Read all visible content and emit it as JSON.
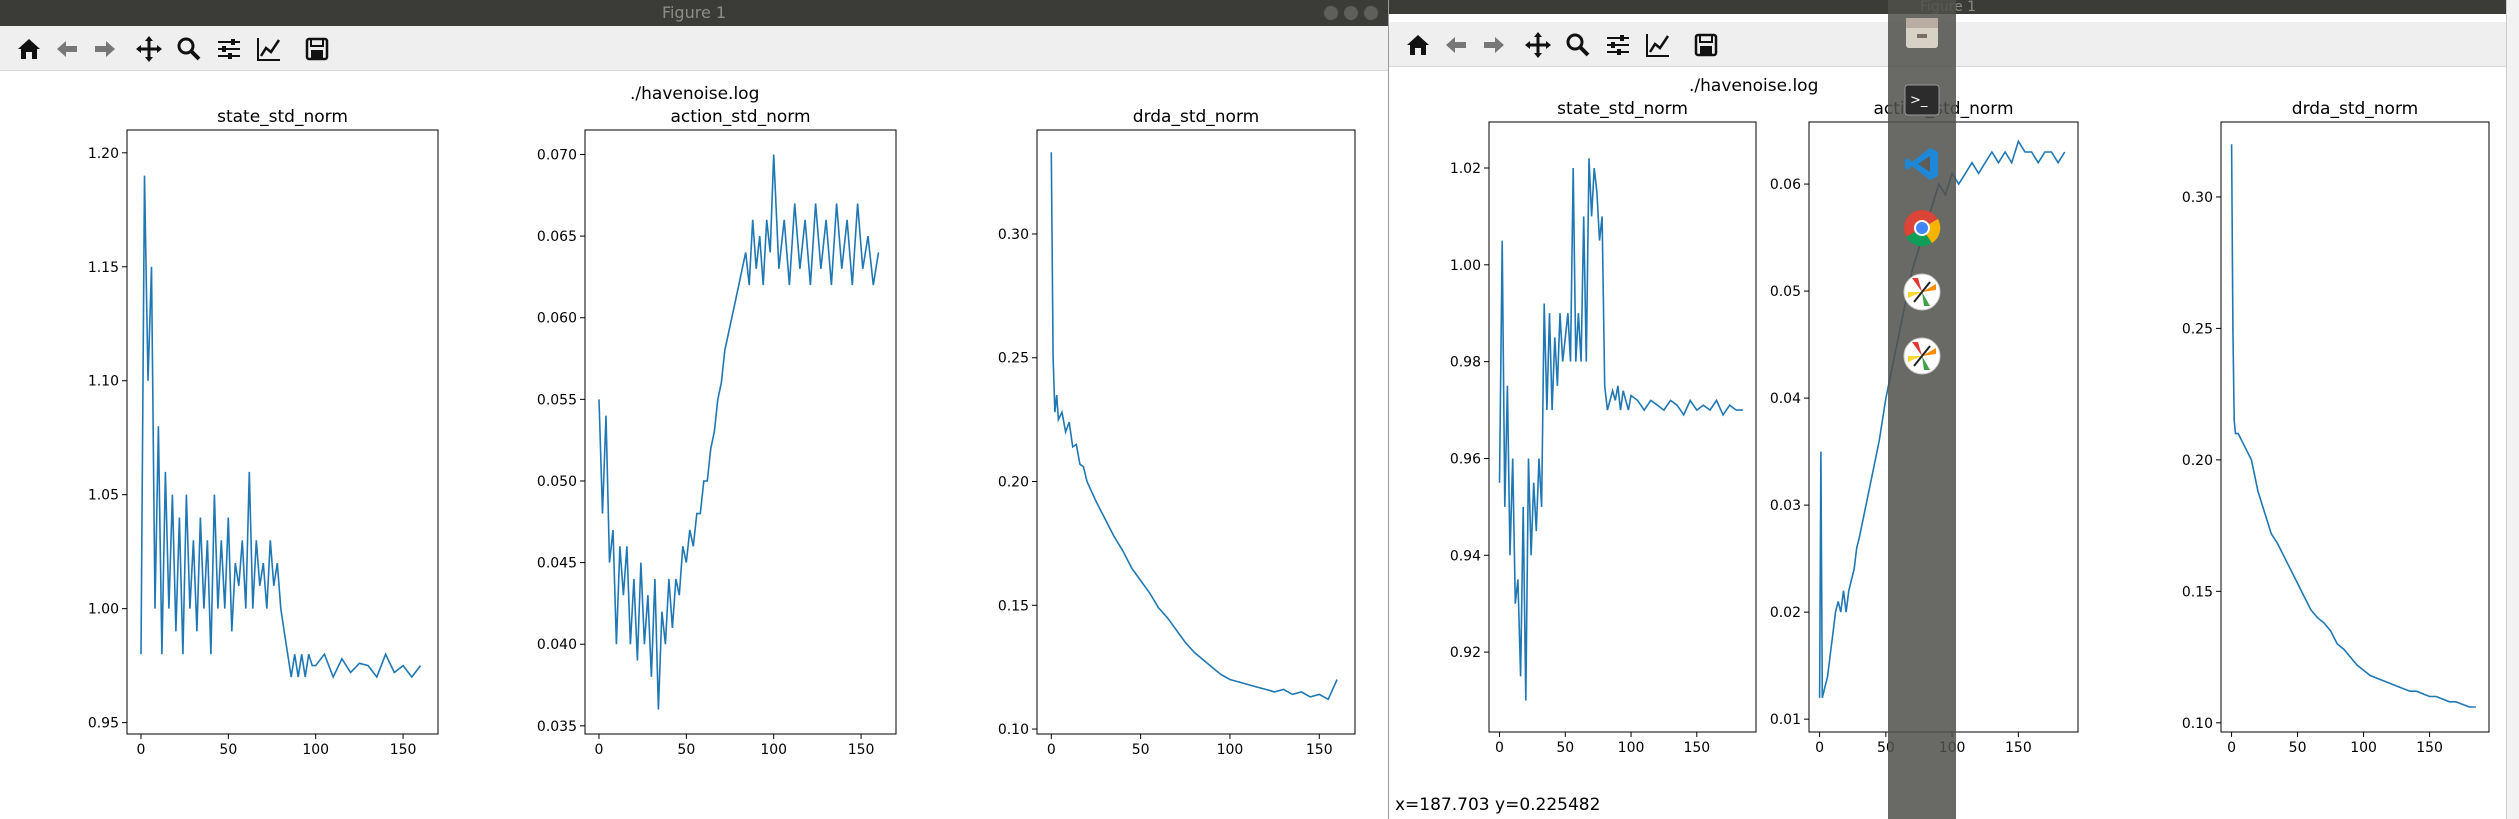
{
  "windows": {
    "left": {
      "title": "Figure 1",
      "suptitle": "./havenoise.log",
      "status": ""
    },
    "right": {
      "title": "Figure 1",
      "suptitle": "./havenoise.log",
      "status": "x=187.703     y=0.225482"
    }
  },
  "toolbar_icons": [
    "home-icon",
    "back-icon",
    "forward-icon",
    "pan-icon",
    "zoom-icon",
    "configure-subplots-icon",
    "edit-axis-icon",
    "save-icon"
  ],
  "dock_icons": [
    "files-icon",
    "terminal-icon",
    "vscode-icon",
    "chrome-icon",
    "pinwheel-app-icon",
    "pinwheel-app-icon-2"
  ],
  "colors": {
    "line": "#1f77b4",
    "titlebar": "#3b3b37",
    "toolbar": "#efefef",
    "dock": "#50504c"
  },
  "chart_data": [
    {
      "type": "line",
      "window": "left",
      "title": "state_std_norm",
      "xlabel": "",
      "ylabel": "",
      "xlim": [
        -8,
        170
      ],
      "ylim": [
        0.945,
        1.21
      ],
      "xticks": [
        0,
        50,
        100,
        150
      ],
      "yticks": [
        0.95,
        1.0,
        1.05,
        1.1,
        1.15,
        1.2
      ],
      "ytick_labels": [
        "0.95",
        "1.00",
        "1.05",
        "1.10",
        "1.15",
        "1.20"
      ],
      "x": [
        0,
        2,
        4,
        6,
        8,
        10,
        12,
        14,
        16,
        18,
        20,
        22,
        24,
        26,
        28,
        30,
        32,
        34,
        36,
        38,
        40,
        42,
        44,
        46,
        48,
        50,
        52,
        54,
        56,
        58,
        60,
        62,
        64,
        66,
        68,
        70,
        72,
        74,
        76,
        78,
        80,
        82,
        84,
        86,
        88,
        90,
        92,
        94,
        96,
        98,
        100,
        105,
        110,
        115,
        120,
        125,
        130,
        135,
        140,
        145,
        150,
        155,
        160
      ],
      "values": [
        0.98,
        1.19,
        1.1,
        1.15,
        1.0,
        1.08,
        0.98,
        1.06,
        1.0,
        1.05,
        0.99,
        1.04,
        0.98,
        1.05,
        1.0,
        1.03,
        0.99,
        1.04,
        1.0,
        1.03,
        0.98,
        1.05,
        1.0,
        1.03,
        1.0,
        1.04,
        0.99,
        1.02,
        1.01,
        1.03,
        1.0,
        1.06,
        1.0,
        1.03,
        1.01,
        1.02,
        1.0,
        1.03,
        1.01,
        1.02,
        1.0,
        0.99,
        0.98,
        0.97,
        0.98,
        0.97,
        0.98,
        0.97,
        0.98,
        0.975,
        0.975,
        0.98,
        0.97,
        0.978,
        0.972,
        0.976,
        0.975,
        0.97,
        0.98,
        0.972,
        0.975,
        0.97,
        0.975
      ]
    },
    {
      "type": "line",
      "window": "left",
      "title": "action_std_norm",
      "xlabel": "",
      "ylabel": "",
      "xlim": [
        -8,
        170
      ],
      "ylim": [
        0.0345,
        0.0715
      ],
      "xticks": [
        0,
        50,
        100,
        150
      ],
      "yticks": [
        0.035,
        0.04,
        0.045,
        0.05,
        0.055,
        0.06,
        0.065,
        0.07
      ],
      "ytick_labels": [
        "0.035",
        "0.040",
        "0.045",
        "0.050",
        "0.055",
        "0.060",
        "0.065",
        "0.070"
      ],
      "x": [
        0,
        2,
        4,
        6,
        8,
        10,
        12,
        14,
        16,
        18,
        20,
        22,
        24,
        26,
        28,
        30,
        32,
        34,
        36,
        38,
        40,
        42,
        44,
        46,
        48,
        50,
        52,
        54,
        56,
        58,
        60,
        62,
        64,
        66,
        68,
        70,
        72,
        74,
        76,
        78,
        80,
        82,
        84,
        86,
        88,
        90,
        92,
        94,
        96,
        98,
        100,
        103,
        106,
        109,
        112,
        115,
        118,
        121,
        124,
        127,
        130,
        133,
        136,
        139,
        142,
        145,
        148,
        151,
        154,
        157,
        160
      ],
      "values": [
        0.055,
        0.048,
        0.054,
        0.045,
        0.047,
        0.04,
        0.046,
        0.043,
        0.046,
        0.04,
        0.044,
        0.039,
        0.045,
        0.04,
        0.043,
        0.038,
        0.044,
        0.036,
        0.042,
        0.04,
        0.044,
        0.041,
        0.044,
        0.043,
        0.046,
        0.045,
        0.047,
        0.046,
        0.048,
        0.048,
        0.05,
        0.05,
        0.052,
        0.053,
        0.055,
        0.056,
        0.058,
        0.059,
        0.06,
        0.061,
        0.062,
        0.063,
        0.064,
        0.062,
        0.066,
        0.063,
        0.065,
        0.062,
        0.066,
        0.064,
        0.07,
        0.063,
        0.066,
        0.062,
        0.067,
        0.063,
        0.066,
        0.062,
        0.067,
        0.063,
        0.066,
        0.062,
        0.067,
        0.063,
        0.066,
        0.062,
        0.067,
        0.063,
        0.065,
        0.062,
        0.064
      ]
    },
    {
      "type": "line",
      "window": "left",
      "title": "drda_std_norm",
      "xlabel": "",
      "ylabel": "",
      "xlim": [
        -8,
        170
      ],
      "ylim": [
        0.098,
        0.342
      ],
      "xticks": [
        0,
        50,
        100,
        150
      ],
      "yticks": [
        0.1,
        0.15,
        0.2,
        0.25,
        0.3
      ],
      "ytick_labels": [
        "0.10",
        "0.15",
        "0.20",
        "0.25",
        "0.30"
      ],
      "x": [
        0,
        1,
        2,
        3,
        4,
        6,
        8,
        10,
        12,
        14,
        16,
        18,
        20,
        25,
        30,
        35,
        40,
        45,
        50,
        55,
        60,
        65,
        70,
        75,
        80,
        85,
        90,
        95,
        100,
        105,
        110,
        115,
        120,
        125,
        130,
        135,
        140,
        145,
        150,
        155,
        160
      ],
      "values": [
        0.333,
        0.25,
        0.228,
        0.235,
        0.225,
        0.228,
        0.22,
        0.224,
        0.214,
        0.215,
        0.207,
        0.206,
        0.2,
        0.192,
        0.185,
        0.178,
        0.172,
        0.165,
        0.16,
        0.155,
        0.149,
        0.145,
        0.14,
        0.135,
        0.131,
        0.128,
        0.125,
        0.122,
        0.12,
        0.119,
        0.118,
        0.117,
        0.116,
        0.115,
        0.116,
        0.114,
        0.115,
        0.113,
        0.114,
        0.112,
        0.12
      ]
    },
    {
      "type": "line",
      "window": "right",
      "title": "state_std_norm",
      "xlabel": "",
      "ylabel": "",
      "xlim": [
        -8,
        195
      ],
      "ylim": [
        0.9035,
        1.0295
      ],
      "xticks": [
        0,
        50,
        100,
        150
      ],
      "yticks": [
        0.92,
        0.94,
        0.96,
        0.98,
        1.0,
        1.02
      ],
      "ytick_labels": [
        "0.92",
        "0.94",
        "0.96",
        "0.98",
        "1.00",
        "1.02"
      ],
      "x": [
        0,
        2,
        4,
        6,
        8,
        10,
        12,
        14,
        16,
        18,
        20,
        22,
        24,
        26,
        28,
        30,
        32,
        34,
        36,
        38,
        40,
        42,
        44,
        46,
        48,
        50,
        52,
        54,
        56,
        58,
        60,
        62,
        64,
        66,
        68,
        70,
        72,
        74,
        76,
        78,
        80,
        82,
        84,
        86,
        88,
        90,
        92,
        94,
        96,
        98,
        100,
        105,
        110,
        115,
        120,
        125,
        130,
        135,
        140,
        145,
        150,
        155,
        160,
        165,
        170,
        175,
        180,
        185
      ],
      "values": [
        0.955,
        1.005,
        0.95,
        0.975,
        0.94,
        0.96,
        0.93,
        0.935,
        0.915,
        0.95,
        0.91,
        0.96,
        0.94,
        0.955,
        0.945,
        0.96,
        0.95,
        0.992,
        0.97,
        0.99,
        0.97,
        0.985,
        0.975,
        0.99,
        0.98,
        0.985,
        0.99,
        0.98,
        1.02,
        0.98,
        0.99,
        0.98,
        1.01,
        0.98,
        1.022,
        1.01,
        1.02,
        1.015,
        1.005,
        1.01,
        0.975,
        0.97,
        0.972,
        0.974,
        0.972,
        0.975,
        0.97,
        0.974,
        0.972,
        0.97,
        0.973,
        0.972,
        0.97,
        0.972,
        0.971,
        0.97,
        0.972,
        0.971,
        0.969,
        0.972,
        0.97,
        0.971,
        0.97,
        0.972,
        0.969,
        0.971,
        0.97,
        0.97
      ]
    },
    {
      "type": "line",
      "window": "right",
      "title": "action_std_norm",
      "xlabel": "",
      "ylabel": "",
      "xlim": [
        -8,
        195
      ],
      "ylim": [
        0.0088,
        0.0658
      ],
      "xticks": [
        0,
        50,
        100,
        150
      ],
      "yticks": [
        0.01,
        0.02,
        0.03,
        0.04,
        0.05,
        0.06
      ],
      "ytick_labels": [
        "0.01",
        "0.02",
        "0.03",
        "0.04",
        "0.05",
        "0.06"
      ],
      "x": [
        0,
        1,
        2,
        4,
        6,
        8,
        10,
        12,
        14,
        16,
        18,
        20,
        22,
        24,
        26,
        28,
        30,
        35,
        40,
        45,
        50,
        55,
        60,
        65,
        70,
        75,
        80,
        85,
        90,
        95,
        100,
        105,
        110,
        115,
        120,
        125,
        130,
        135,
        140,
        145,
        150,
        155,
        160,
        165,
        170,
        175,
        180,
        185
      ],
      "values": [
        0.012,
        0.035,
        0.012,
        0.013,
        0.014,
        0.016,
        0.018,
        0.02,
        0.021,
        0.02,
        0.022,
        0.02,
        0.022,
        0.023,
        0.024,
        0.026,
        0.027,
        0.03,
        0.033,
        0.036,
        0.04,
        0.043,
        0.046,
        0.049,
        0.052,
        0.054,
        0.056,
        0.058,
        0.06,
        0.059,
        0.061,
        0.06,
        0.061,
        0.062,
        0.061,
        0.062,
        0.063,
        0.062,
        0.063,
        0.062,
        0.064,
        0.063,
        0.063,
        0.062,
        0.063,
        0.063,
        0.062,
        0.063
      ]
    },
    {
      "type": "line",
      "window": "right",
      "title": "drda_std_norm",
      "xlabel": "",
      "ylabel": "",
      "xlim": [
        -8,
        195
      ],
      "ylim": [
        0.0965,
        0.3285
      ],
      "xticks": [
        0,
        50,
        100,
        150
      ],
      "yticks": [
        0.1,
        0.15,
        0.2,
        0.25,
        0.3
      ],
      "ytick_labels": [
        "0.10",
        "0.15",
        "0.20",
        "0.25",
        "0.30"
      ],
      "x": [
        0,
        1,
        2,
        3,
        5,
        7,
        10,
        15,
        20,
        25,
        30,
        35,
        40,
        45,
        50,
        55,
        60,
        65,
        70,
        75,
        80,
        85,
        90,
        95,
        100,
        105,
        110,
        115,
        120,
        125,
        130,
        135,
        140,
        145,
        150,
        155,
        160,
        165,
        170,
        175,
        180,
        185
      ],
      "values": [
        0.32,
        0.25,
        0.215,
        0.21,
        0.21,
        0.208,
        0.205,
        0.2,
        0.188,
        0.18,
        0.172,
        0.168,
        0.163,
        0.158,
        0.153,
        0.148,
        0.143,
        0.14,
        0.138,
        0.135,
        0.13,
        0.128,
        0.125,
        0.122,
        0.12,
        0.118,
        0.117,
        0.116,
        0.115,
        0.114,
        0.113,
        0.112,
        0.112,
        0.111,
        0.11,
        0.11,
        0.109,
        0.108,
        0.108,
        0.107,
        0.106,
        0.106
      ]
    }
  ]
}
